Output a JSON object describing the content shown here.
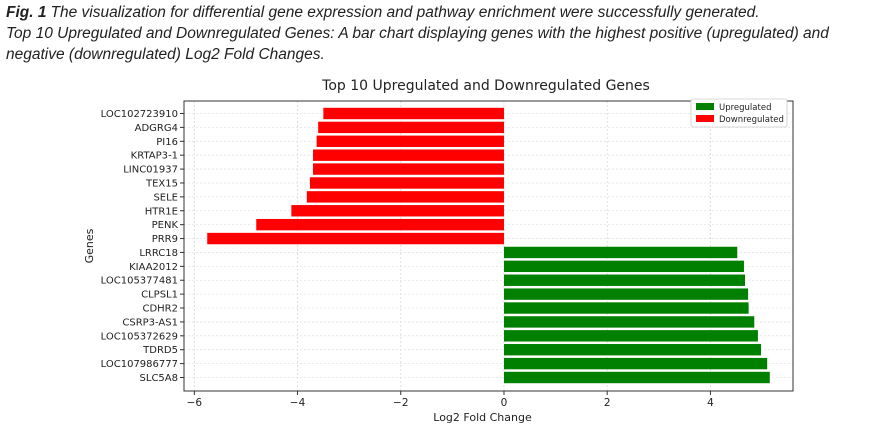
{
  "caption": {
    "label": "Fig. 1",
    "line1": "The visualization for differential gene expression and pathway enrichment were successfully generated.",
    "line2": "Top 10 Upregulated and Downregulated Genes: A bar chart displaying genes with the highest positive (upregulated) and negative (downregulated) Log2 Fold Changes."
  },
  "chart_data": {
    "type": "bar",
    "orientation": "horizontal",
    "title": "Top 10 Upregulated and Downregulated Genes",
    "xlabel": "Log2 Fold Change",
    "ylabel": "Genes",
    "xlim": [
      -6.2,
      5.6
    ],
    "xticks": [
      -6,
      -4,
      -2,
      0,
      2,
      4
    ],
    "xtick_labels": [
      "−6",
      "−4",
      "−2",
      "0",
      "2",
      "4"
    ],
    "grid": true,
    "legend_position": "top-right",
    "series": [
      {
        "name": "Upregulated",
        "color": "#008000",
        "categories": [
          "SLC5A8",
          "LOC107986777",
          "TDRD5",
          "LOC105372629",
          "CSRP3-AS1",
          "CDHR2",
          "CLPSL1",
          "LOC105377481",
          "KIAA2012",
          "LRRC18"
        ],
        "values": [
          5.15,
          5.1,
          4.98,
          4.92,
          4.85,
          4.74,
          4.73,
          4.67,
          4.65,
          4.52
        ]
      },
      {
        "name": "Downregulated",
        "color": "#ff0000",
        "categories": [
          "PRR9",
          "PENK",
          "HTR1E",
          "SELE",
          "TEX15",
          "LINC01937",
          "KRTAP3-1",
          "PI16",
          "ADGRG4",
          "LOC102723910"
        ],
        "values": [
          -5.75,
          -4.8,
          -4.12,
          -3.82,
          -3.76,
          -3.7,
          -3.7,
          -3.63,
          -3.6,
          -3.5
        ]
      }
    ]
  }
}
